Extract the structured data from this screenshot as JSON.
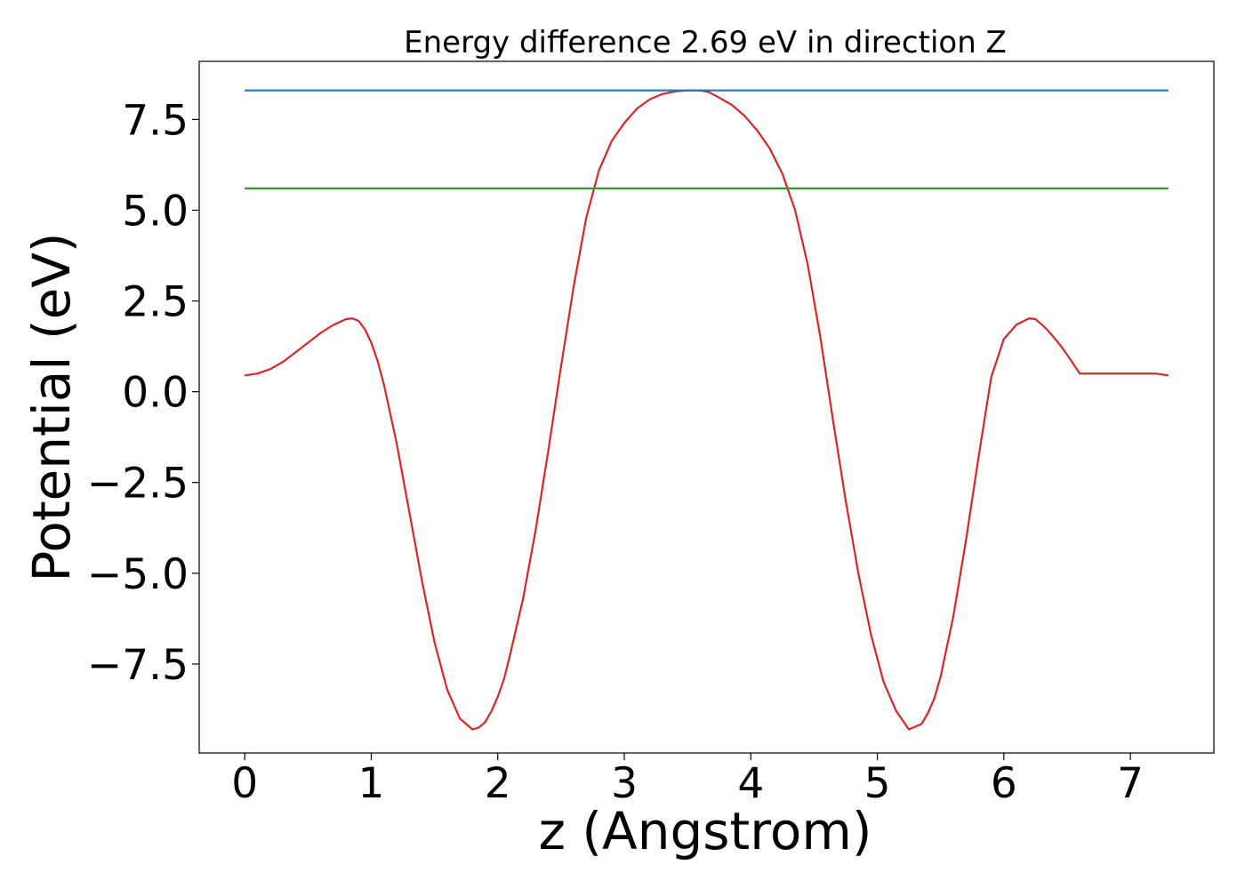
{
  "chart_data": {
    "type": "line",
    "title": "Energy difference 2.69 eV in direction Z",
    "xlabel": "z (Angstrom)",
    "ylabel": "Potential (eV)",
    "xlim": [
      -0.36,
      7.66
    ],
    "ylim": [
      -9.95,
      9.1
    ],
    "grid": false,
    "xticks": [
      0,
      1,
      2,
      3,
      4,
      5,
      6,
      7
    ],
    "xtick_labels": [
      "0",
      "1",
      "2",
      "3",
      "4",
      "5",
      "6",
      "7"
    ],
    "yticks": [
      -7.5,
      -5.0,
      -2.5,
      0.0,
      2.5,
      5.0,
      7.5
    ],
    "ytick_labels": [
      "−7.5",
      "−5.0",
      "−2.5",
      "0.0",
      "2.5",
      "5.0",
      "7.5"
    ],
    "series": [
      {
        "color": "#d62728",
        "x": [
          0,
          0.1,
          0.2,
          0.3,
          0.4,
          0.5,
          0.6,
          0.7,
          0.8,
          0.85,
          0.9,
          0.95,
          1.0,
          1.05,
          1.1,
          1.2,
          1.3,
          1.4,
          1.5,
          1.6,
          1.7,
          1.8,
          1.85,
          1.9,
          1.95,
          2.0,
          2.05,
          2.1,
          2.2,
          2.3,
          2.4,
          2.5,
          2.6,
          2.7,
          2.8,
          2.9,
          3.0,
          3.1,
          3.2,
          3.3,
          3.4,
          3.5,
          3.6,
          3.67,
          3.75,
          3.85,
          3.95,
          4.05,
          4.15,
          4.25,
          4.35,
          4.45,
          4.55,
          4.65,
          4.75,
          4.85,
          4.95,
          5.05,
          5.15,
          5.25,
          5.35,
          5.4,
          5.45,
          5.5,
          5.6,
          5.7,
          5.8,
          5.9,
          6.0,
          6.1,
          6.2,
          6.25,
          6.3,
          6.35,
          6.4,
          6.45,
          6.5,
          6.6,
          6.7,
          6.8,
          6.9,
          7.0,
          7.1,
          7.2,
          7.3
        ],
        "y": [
          0.45,
          0.5,
          0.62,
          0.82,
          1.08,
          1.35,
          1.62,
          1.84,
          2.0,
          2.02,
          1.95,
          1.72,
          1.35,
          0.85,
          0.2,
          -1.4,
          -3.3,
          -5.2,
          -6.9,
          -8.2,
          -9.0,
          -9.3,
          -9.25,
          -9.1,
          -8.8,
          -8.4,
          -7.9,
          -7.2,
          -5.7,
          -3.8,
          -1.6,
          0.7,
          2.9,
          4.8,
          6.1,
          6.9,
          7.4,
          7.8,
          8.05,
          8.2,
          8.27,
          8.3,
          8.3,
          8.25,
          8.1,
          7.9,
          7.6,
          7.2,
          6.7,
          6.0,
          5.0,
          3.5,
          1.5,
          -0.8,
          -3.0,
          -5.0,
          -6.7,
          -8.0,
          -8.8,
          -9.3,
          -9.15,
          -8.85,
          -8.45,
          -7.85,
          -6.2,
          -4.1,
          -1.8,
          0.4,
          1.45,
          1.85,
          2.02,
          2.0,
          1.85,
          1.68,
          1.48,
          1.26,
          1.02,
          0.5,
          0.5,
          0.5,
          0.5,
          0.5,
          0.5,
          0.5,
          0.45
        ]
      },
      {
        "color": "#1f77b4",
        "x": [
          0,
          7.3
        ],
        "y": [
          8.3,
          8.3
        ]
      },
      {
        "color": "#2ca02c",
        "x": [
          0,
          7.3
        ],
        "y": [
          5.6,
          5.6
        ]
      }
    ]
  }
}
